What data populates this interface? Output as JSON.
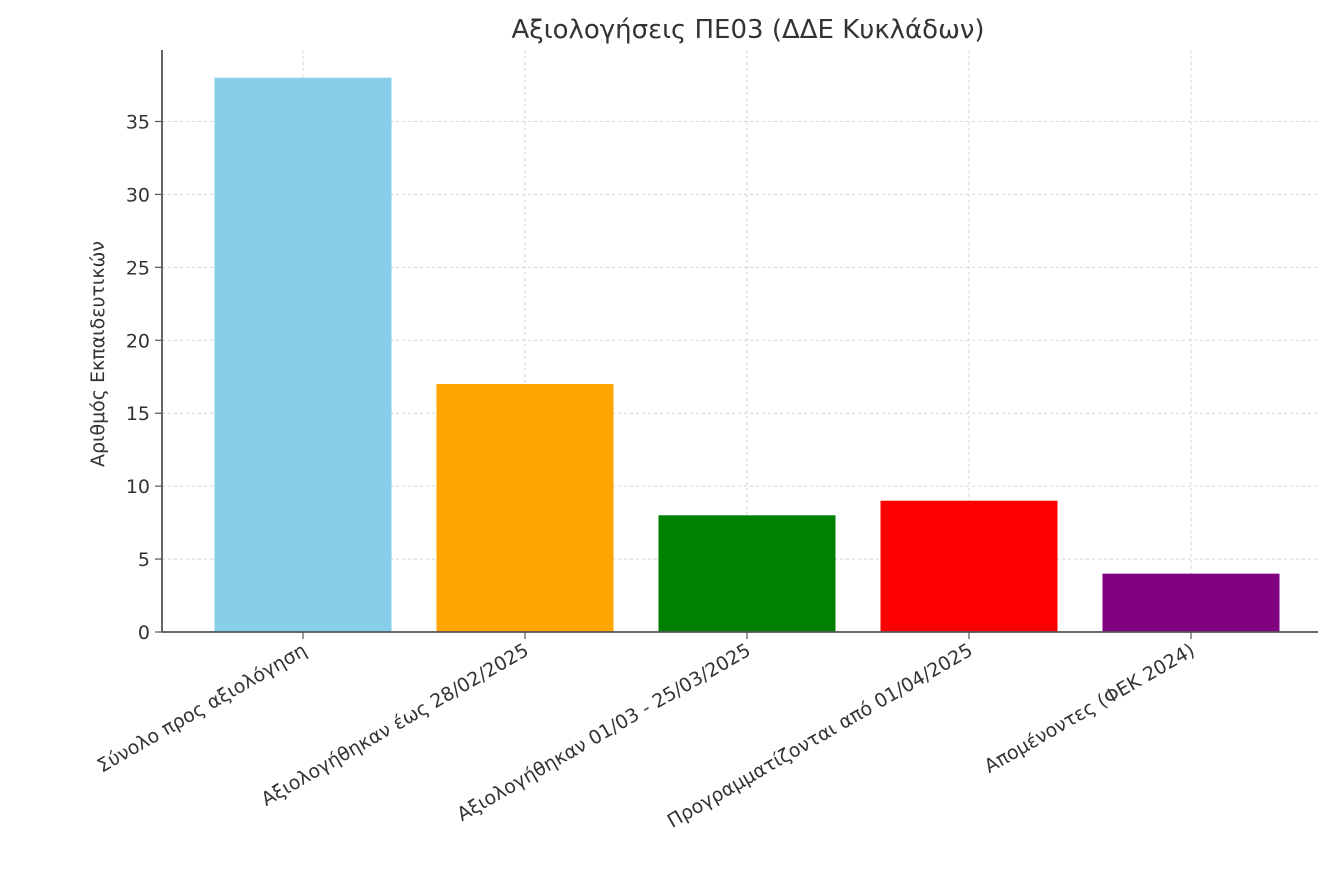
{
  "chart_data": {
    "type": "bar",
    "title": "Αξιολογήσεις ΠΕ03 (ΔΔΕ Κυκλάδων)",
    "xlabel": "",
    "ylabel": "Αριθμός Εκπαιδευτικών",
    "categories": [
      "Σύνολο προς αξιολόγηση",
      "Αξιολογήθηκαν έως 28/02/2025",
      "Αξιολογήθηκαν 01/03 - 25/03/2025",
      "Προγραμματίζονται από 01/04/2025",
      "Απομένοντες (ΦΕΚ 2024)"
    ],
    "values": [
      38,
      17,
      8,
      9,
      4
    ],
    "colors": [
      "#87ceeb",
      "#ffa500",
      "#008000",
      "#ff0000",
      "#800080"
    ],
    "ylim": [
      0,
      39.9
    ],
    "yticks": [
      0,
      5,
      10,
      15,
      20,
      25,
      30,
      35
    ],
    "grid": true,
    "legend": "none"
  }
}
